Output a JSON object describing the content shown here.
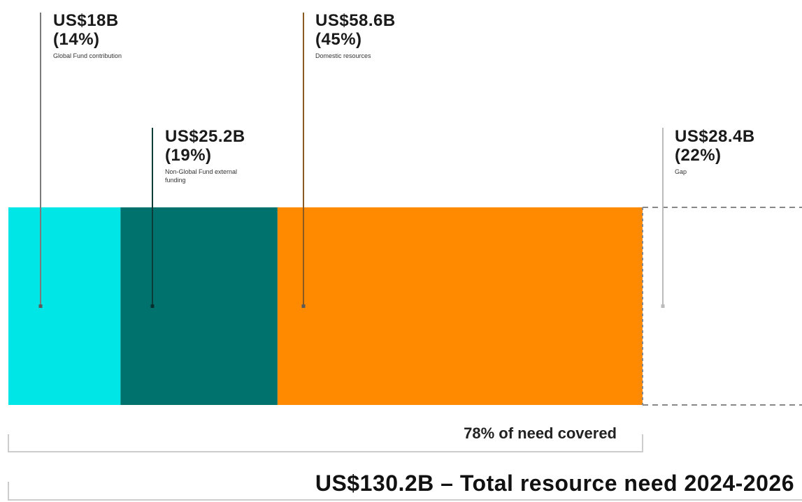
{
  "chart_data": {
    "type": "stacked-bar",
    "orientation": "horizontal",
    "unit": "US$ billions",
    "total": 130.2,
    "segments": [
      {
        "name": "Global Fund contribution",
        "value": 18,
        "label": "US$18B",
        "pct_label": "(14%)",
        "color": "#00e5e5",
        "dashed": false
      },
      {
        "name": "Non-Global Fund external funding",
        "value": 25.2,
        "label": "US$25.2B",
        "pct_label": "(19%)",
        "color": "#00726d",
        "dashed": false
      },
      {
        "name": "Domestic resources",
        "value": 58.6,
        "label": "US$58.6B",
        "pct_label": "(45%)",
        "color": "#ff8a00",
        "dashed": false
      },
      {
        "name": "Gap",
        "value": 28.4,
        "label": "US$28.4B",
        "pct_label": "(22%)",
        "color": "#ffffff",
        "dashed": true
      }
    ],
    "coverage_label": "78% of need covered",
    "total_label": "US$130.2B – Total resource need 2024-2026"
  }
}
